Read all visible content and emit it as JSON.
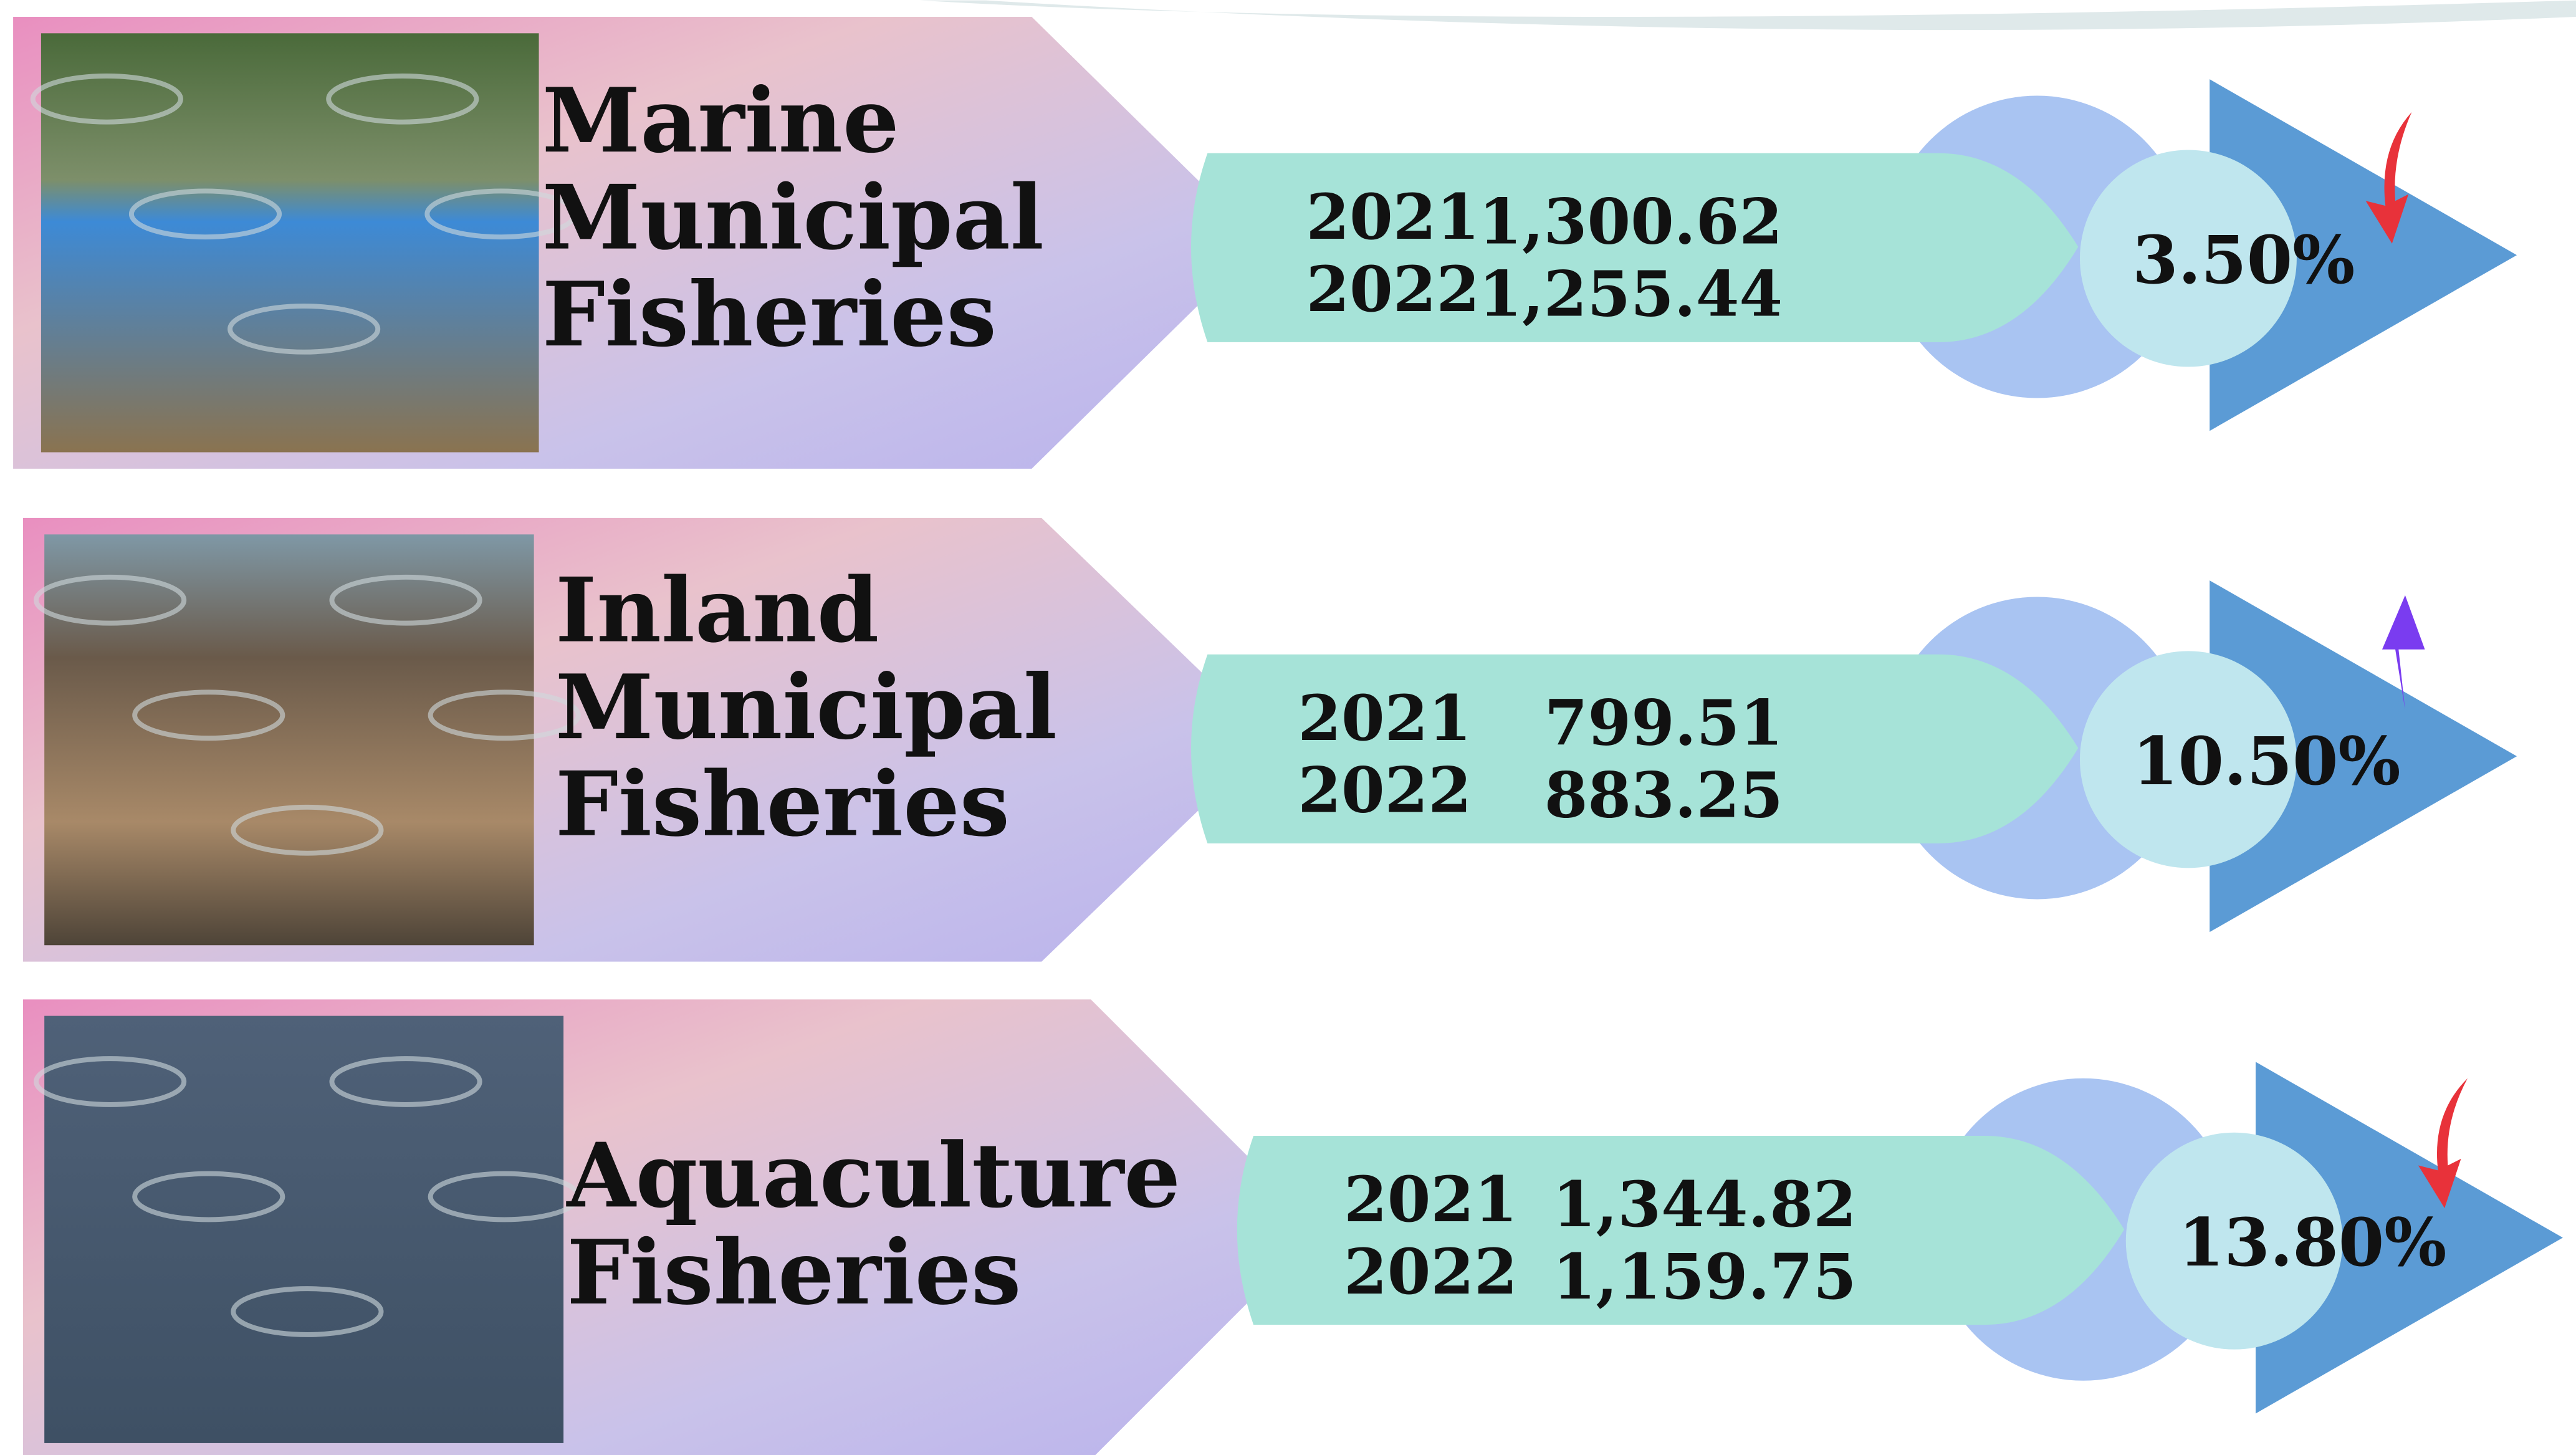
{
  "rows": [
    {
      "title_lines": [
        "Marine",
        "Municipal",
        "Fisheries"
      ],
      "years": [
        "2021",
        "2022"
      ],
      "values": [
        "1,300.62",
        "1,255.44"
      ],
      "change": "3.50%"
    },
    {
      "title_lines": [
        "Inland",
        "Municipal",
        "Fisheries"
      ],
      "years": [
        "2021",
        "2022"
      ],
      "values": [
        "799.51",
        "883.25"
      ],
      "change": "10.50%"
    },
    {
      "title_lines": [
        "Aquaculture",
        "Fisheries"
      ],
      "years": [
        "2021",
        "2022"
      ],
      "values": [
        "1,344.82",
        "1,159.75"
      ],
      "change": "13.80%"
    }
  ]
}
